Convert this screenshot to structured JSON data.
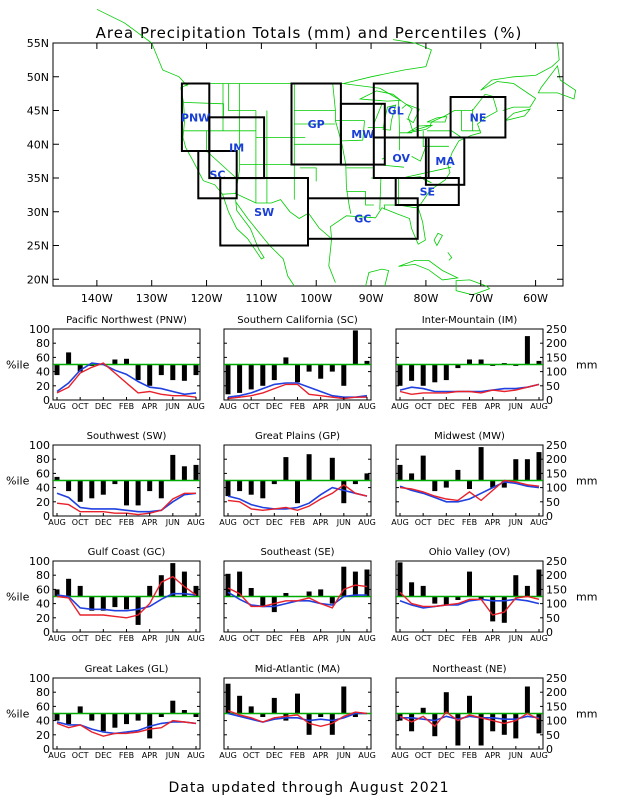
{
  "page": {
    "title": "Area Precipitation Totals (mm) and Percentiles (%)",
    "footer": "Data updated through August 2021"
  },
  "colors": {
    "map_lines": "#00cc00",
    "region_box": "#000000",
    "region_label": "#1a3fd6",
    "bar": "#000000",
    "median_line": "#00aa00",
    "observed_line": "#e8202a",
    "normal_line": "#2040e0"
  },
  "map": {
    "lat_ticks": [
      "55N",
      "50N",
      "45N",
      "40N",
      "35N",
      "30N",
      "25N",
      "20N"
    ],
    "lon_ticks": [
      "140W",
      "130W",
      "120W",
      "110W",
      "100W",
      "90W",
      "80W",
      "70W",
      "60W"
    ],
    "regions": [
      {
        "code": "PNW",
        "lon": [
          -124.5,
          -119.5
        ],
        "lat": [
          39,
          49
        ]
      },
      {
        "code": "SC",
        "lon": [
          -121.5,
          -114.5
        ],
        "lat": [
          32,
          39
        ]
      },
      {
        "code": "IM",
        "lon": [
          -119.5,
          -109.5
        ],
        "lat": [
          35,
          44
        ]
      },
      {
        "code": "SW",
        "lon": [
          -117.5,
          -101.5
        ],
        "lat": [
          25,
          35
        ]
      },
      {
        "code": "GP",
        "lon": [
          -104.5,
          -95.5
        ],
        "lat": [
          37,
          49
        ]
      },
      {
        "code": "MW",
        "lon": [
          -95.5,
          -87.5
        ],
        "lat": [
          37,
          46
        ]
      },
      {
        "code": "GL",
        "lon": [
          -89.5,
          -81.5
        ],
        "lat": [
          41,
          49
        ]
      },
      {
        "code": "OV",
        "lon": [
          -89.5,
          -79.5
        ],
        "lat": [
          35,
          41
        ]
      },
      {
        "code": "MA",
        "lon": [
          -80,
          -73
        ],
        "lat": [
          34,
          41
        ]
      },
      {
        "code": "NE",
        "lon": [
          -75.5,
          -65.5
        ],
        "lat": [
          41,
          47
        ]
      },
      {
        "code": "SE",
        "lon": [
          -85.5,
          -74
        ],
        "lat": [
          31,
          35
        ]
      },
      {
        "code": "GC",
        "lon": [
          -101.5,
          -81.5
        ],
        "lat": [
          26,
          32
        ]
      }
    ]
  },
  "axes": {
    "pct_label": "%ile",
    "mm_label": "mm",
    "pct_ticks": [
      "0",
      "20",
      "40",
      "60",
      "80",
      "100"
    ],
    "mm_ticks": [
      "0",
      "50",
      "100",
      "150",
      "200",
      "250"
    ],
    "month_ticks": [
      "AUG",
      "OCT",
      "DEC",
      "FEB",
      "APR",
      "JUN",
      "AUG"
    ]
  },
  "chart_data": [
    {
      "title": "Pacific Northwest (PNW)",
      "type": "bar+line",
      "pct": [
        35,
        67,
        40,
        48,
        50,
        57,
        58,
        28,
        20,
        35,
        28,
        27,
        35
      ],
      "obs_mm": [
        25,
        45,
        95,
        115,
        130,
        95,
        60,
        25,
        30,
        20,
        15,
        15,
        10
      ],
      "norm_mm": [
        30,
        60,
        105,
        130,
        125,
        105,
        90,
        65,
        45,
        40,
        30,
        20,
        25
      ]
    },
    {
      "title": "Southern California (SC)",
      "type": "bar+line",
      "pct": [
        8,
        10,
        15,
        20,
        28,
        60,
        25,
        40,
        30,
        40,
        20,
        98,
        55
      ],
      "obs_mm": [
        5,
        10,
        15,
        25,
        40,
        55,
        55,
        20,
        15,
        10,
        5,
        10,
        10
      ],
      "norm_mm": [
        10,
        15,
        25,
        40,
        55,
        60,
        60,
        45,
        30,
        15,
        10,
        10,
        15
      ]
    },
    {
      "title": "Inter-Mountain (IM)",
      "type": "bar+line",
      "pct": [
        20,
        27,
        20,
        25,
        28,
        45,
        57,
        57,
        48,
        52,
        48,
        90,
        55
      ],
      "obs_mm": [
        30,
        20,
        25,
        25,
        25,
        30,
        30,
        25,
        35,
        30,
        35,
        45,
        55
      ],
      "norm_mm": [
        35,
        45,
        40,
        30,
        30,
        30,
        30,
        30,
        35,
        40,
        40,
        45,
        55
      ]
    },
    {
      "title": "Southwest (SW)",
      "type": "bar+line",
      "pct": [
        55,
        35,
        20,
        25,
        30,
        45,
        15,
        15,
        35,
        25,
        86,
        70,
        72
      ],
      "obs_mm": [
        45,
        40,
        15,
        15,
        15,
        10,
        10,
        5,
        10,
        20,
        60,
        80,
        80
      ],
      "norm_mm": [
        80,
        65,
        30,
        25,
        25,
        25,
        20,
        15,
        15,
        20,
        50,
        75,
        80
      ]
    },
    {
      "title": "Great Plains (GP)",
      "type": "bar+line",
      "pct": [
        28,
        35,
        30,
        25,
        45,
        83,
        18,
        87,
        50,
        82,
        18,
        45,
        60
      ],
      "obs_mm": [
        55,
        50,
        25,
        20,
        25,
        30,
        20,
        35,
        60,
        80,
        110,
        80,
        70
      ],
      "norm_mm": [
        70,
        60,
        40,
        30,
        25,
        25,
        30,
        45,
        75,
        100,
        90,
        80,
        70
      ]
    },
    {
      "title": "Midwest (MW)",
      "type": "bar+line",
      "pct": [
        72,
        60,
        85,
        35,
        40,
        65,
        38,
        97,
        40,
        40,
        80,
        80,
        90
      ],
      "obs_mm": [
        100,
        95,
        85,
        70,
        60,
        55,
        85,
        55,
        90,
        125,
        120,
        110,
        105
      ],
      "norm_mm": [
        105,
        90,
        80,
        65,
        50,
        50,
        60,
        80,
        100,
        120,
        115,
        105,
        100
      ]
    },
    {
      "title": "Gulf Coast (GC)",
      "type": "bar+line",
      "pct": [
        60,
        75,
        65,
        30,
        30,
        35,
        32,
        10,
        65,
        80,
        97,
        85,
        65
      ],
      "obs_mm": [
        125,
        120,
        60,
        60,
        60,
        55,
        50,
        60,
        100,
        175,
        195,
        160,
        130
      ],
      "norm_mm": [
        130,
        125,
        85,
        80,
        80,
        75,
        75,
        80,
        90,
        115,
        135,
        135,
        130
      ]
    },
    {
      "title": "Southeast (SE)",
      "type": "bar+line",
      "pct": [
        82,
        85,
        62,
        35,
        28,
        55,
        50,
        57,
        60,
        40,
        92,
        85,
        88
      ],
      "obs_mm": [
        155,
        135,
        90,
        90,
        100,
        110,
        110,
        120,
        100,
        85,
        150,
        165,
        160
      ],
      "norm_mm": [
        140,
        115,
        95,
        90,
        90,
        100,
        110,
        110,
        100,
        95,
        125,
        130,
        130
      ]
    },
    {
      "title": "Ohio Valley (OV)",
      "type": "bar+line",
      "pct": [
        98,
        70,
        65,
        40,
        38,
        45,
        85,
        45,
        15,
        13,
        80,
        65,
        88
      ],
      "obs_mm": [
        140,
        100,
        90,
        90,
        95,
        100,
        115,
        115,
        60,
        70,
        120,
        125,
        115
      ],
      "norm_mm": [
        110,
        95,
        85,
        90,
        95,
        95,
        110,
        115,
        110,
        110,
        115,
        110,
        100
      ]
    },
    {
      "title": "Great Lakes (GL)",
      "type": "bar+line",
      "pct": [
        40,
        35,
        60,
        40,
        25,
        30,
        35,
        40,
        15,
        45,
        68,
        55,
        45
      ],
      "obs_mm": [
        90,
        75,
        85,
        60,
        45,
        55,
        55,
        60,
        70,
        75,
        100,
        95,
        90
      ],
      "norm_mm": [
        95,
        85,
        85,
        70,
        60,
        55,
        60,
        65,
        80,
        90,
        95,
        95,
        90
      ]
    },
    {
      "title": "Mid-Atlantic (MA)",
      "type": "bar+line",
      "pct": [
        92,
        75,
        60,
        45,
        72,
        40,
        78,
        20,
        45,
        20,
        88,
        45,
        50
      ],
      "obs_mm": [
        135,
        120,
        110,
        95,
        110,
        115,
        120,
        90,
        80,
        90,
        115,
        130,
        125
      ],
      "norm_mm": [
        125,
        115,
        105,
        95,
        105,
        110,
        110,
        100,
        105,
        100,
        110,
        125,
        125
      ]
    },
    {
      "title": "Northeast (NE)",
      "type": "bar+line",
      "pct": [
        40,
        25,
        58,
        18,
        80,
        5,
        75,
        5,
        25,
        20,
        15,
        88,
        22
      ],
      "obs_mm": [
        115,
        95,
        115,
        80,
        130,
        100,
        120,
        110,
        100,
        90,
        100,
        125,
        105
      ],
      "norm_mm": [
        110,
        110,
        105,
        100,
        115,
        105,
        115,
        110,
        110,
        105,
        105,
        115,
        110
      ]
    }
  ]
}
